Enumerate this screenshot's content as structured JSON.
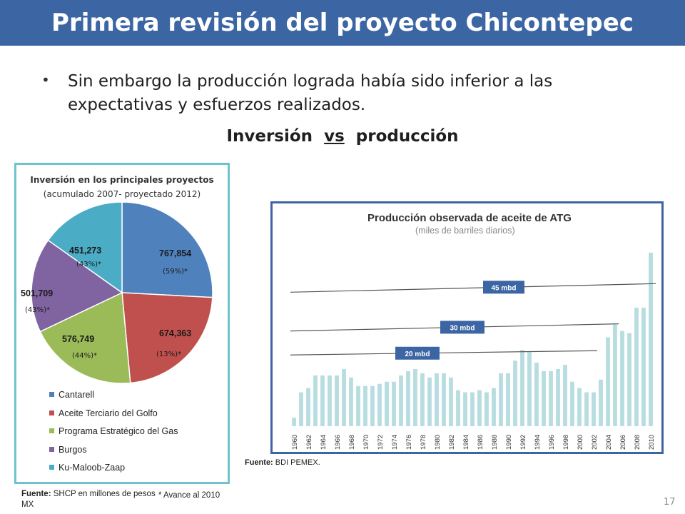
{
  "slide": {
    "title": "Primera revisión del proyecto Chicontepec",
    "bullet": "Sin embargo la producción lograda había sido inferior a las expectativas y esfuerzos realizados.",
    "subtitle_left": "Inversión  ",
    "subtitle_mid": "vs",
    "subtitle_right": "  producción",
    "page_number": "17",
    "colors": {
      "header": "#3c65a4",
      "pie_border": "#6fc3ce",
      "bar_border": "#3c65a4"
    }
  },
  "pie": {
    "title": "Inversión en los principales proyectos",
    "subtitle": "(acumulado 2007- proyectado 2012)",
    "source_label": "Fuente:",
    "source_text": " SHCP en millones de pesos MX",
    "footnote": "* Avance al 2010"
  },
  "bar": {
    "source_label": "Fuente:",
    "source_text": " BDI PEMEX."
  },
  "chart_data": [
    {
      "type": "pie",
      "title": "Inversión en los principales proyectos",
      "subtitle": "(acumulado 2007- proyectado 2012)",
      "slices": [
        {
          "name": "Cantarell",
          "value": 767854,
          "label": "767,854",
          "pct_label": "(59%)*",
          "color": "#4f81bd"
        },
        {
          "name": "Aceite Terciario del Golfo",
          "value": 674363,
          "label": "674,363",
          "pct_label": "(13%)*",
          "color": "#c0504d"
        },
        {
          "name": "Programa Estratégico del Gas",
          "value": 576749,
          "label": "576,749",
          "pct_label": "(44%)*",
          "color": "#9bbb59"
        },
        {
          "name": "Burgos",
          "value": 501709,
          "label": "501,709",
          "pct_label": "(43%)*",
          "color": "#8064a2"
        },
        {
          "name": "Ku-Maloob-Zaap",
          "value": 451273,
          "label": "451,273",
          "pct_label": "(43%)*",
          "color": "#4bacc6"
        }
      ],
      "legend_position": "bottom"
    },
    {
      "type": "bar",
      "title": "Producción observada de aceite de ATG",
      "subtitle": "(miles de barriles diarios)",
      "x": [
        1960,
        1961,
        1962,
        1963,
        1964,
        1965,
        1966,
        1967,
        1968,
        1969,
        1970,
        1971,
        1972,
        1973,
        1974,
        1975,
        1976,
        1977,
        1978,
        1979,
        1980,
        1981,
        1982,
        1983,
        1984,
        1985,
        1986,
        1987,
        1988,
        1989,
        1990,
        1991,
        1992,
        1993,
        1994,
        1995,
        1996,
        1997,
        1998,
        1999,
        2000,
        2001,
        2002,
        2003,
        2004,
        2005,
        2006,
        2007,
        2008,
        2009,
        2010
      ],
      "xticklabels": [
        "1960",
        "1962",
        "1964",
        "1966",
        "1968",
        "1970",
        "1972",
        "1974",
        "1976",
        "1978",
        "1980",
        "1982",
        "1984",
        "1986",
        "1988",
        "1990",
        "1992",
        "1994",
        "1996",
        "1998",
        "2000",
        "2002",
        "2004",
        "2006",
        "2008",
        "2010"
      ],
      "values": [
        4,
        16,
        18,
        24,
        24,
        24,
        24,
        27,
        23,
        19,
        19,
        19,
        20,
        21,
        21,
        24,
        26,
        27,
        25,
        23,
        25,
        25,
        23,
        17,
        16,
        16,
        17,
        16,
        18,
        25,
        25,
        31,
        36,
        35,
        30,
        26,
        26,
        27,
        29,
        21,
        18,
        16,
        16,
        22,
        42,
        48,
        45,
        44,
        56,
        56,
        82
      ],
      "ylim": [
        0,
        85
      ],
      "color": "#b7dde0",
      "reference_lines": [
        {
          "label": "45 mbd",
          "value": 66
        },
        {
          "label": "30 mbd",
          "value": 47
        },
        {
          "label": "20 mbd",
          "value": 35
        }
      ],
      "colors": {
        "ref_label_bg": "#3c65a4",
        "ref_line": "#555555",
        "title": "#333333",
        "subtitle": "#888888"
      }
    }
  ]
}
